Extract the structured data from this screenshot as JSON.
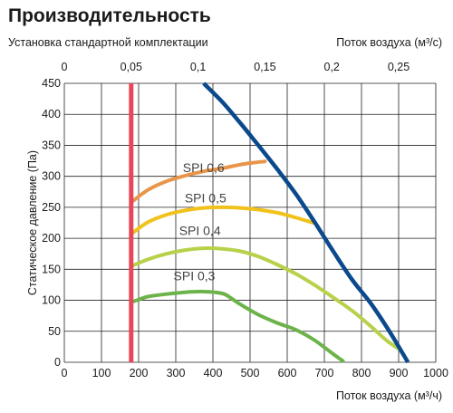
{
  "title": "Производительность",
  "subtitle": "Установка стандартной комплектации",
  "top_axis_label": "Поток воздуха (м³/с)",
  "bottom_axis_label": "Поток воздуха (м³/ч)",
  "chart_data": {
    "type": "line",
    "ylabel": "Статическое давление (Па)",
    "xlim": [
      0,
      1000
    ],
    "ylim": [
      0,
      450
    ],
    "x_ticks": [
      0,
      100,
      200,
      300,
      400,
      500,
      600,
      700,
      800,
      900,
      1000
    ],
    "y_ticks": [
      0,
      50,
      100,
      150,
      200,
      250,
      300,
      350,
      400,
      450
    ],
    "top_axis": {
      "unit": "m3/s",
      "ticks": [
        0,
        0.05,
        0.1,
        0.15,
        0.2,
        0.25
      ],
      "tick_labels": [
        "0",
        "0,05",
        "0,1",
        "0,15",
        "0,2",
        "0,25"
      ]
    },
    "grid": true,
    "min_flow_x": 180,
    "colors": {
      "min_flow": "#e8475a",
      "max_curve": "#0a4a8c",
      "SPI 0,6": "#e8954a",
      "SPI 0,5": "#f0c21a",
      "SPI 0,4": "#b7d14a",
      "SPI 0,3": "#6cb34a",
      "grid": "#222222"
    },
    "series": [
      {
        "name": "SPI 0,6",
        "label_at": [
          375,
          307
        ],
        "x": [
          180,
          225,
          275,
          325,
          375,
          425,
          475,
          510,
          540
        ],
        "y": [
          258,
          278,
          292,
          301,
          308,
          313,
          319,
          322,
          324
        ]
      },
      {
        "name": "SPI 0,5",
        "label_at": [
          380,
          258
        ],
        "x": [
          180,
          225,
          275,
          325,
          375,
          425,
          475,
          525,
          575,
          625,
          670
        ],
        "y": [
          207,
          226,
          238,
          245,
          249,
          250,
          249,
          246,
          241,
          233,
          225
        ]
      },
      {
        "name": "SPI 0,4",
        "label_at": [
          365,
          205
        ],
        "x": [
          180,
          225,
          275,
          325,
          375,
          425,
          475,
          525,
          575,
          625,
          675,
          725,
          775,
          825,
          870,
          905
        ],
        "y": [
          155,
          166,
          175,
          181,
          184,
          183,
          179,
          170,
          157,
          142,
          124,
          104,
          83,
          58,
          34,
          20
        ]
      },
      {
        "name": "SPI 0,3",
        "label_at": [
          350,
          132
        ],
        "x": [
          180,
          200,
          225,
          275,
          325,
          375,
          425,
          450,
          475,
          525,
          575,
          625,
          675,
          720,
          750
        ],
        "y": [
          97,
          101,
          106,
          110,
          113,
          114,
          111,
          103,
          93,
          76,
          63,
          52,
          35,
          15,
          2
        ]
      }
    ],
    "max_curve": {
      "x": [
        375,
        425,
        475,
        525,
        575,
        625,
        675,
        725,
        775,
        825,
        875,
        925
      ],
      "y": [
        450,
        420,
        385,
        348,
        310,
        270,
        225,
        178,
        133,
        95,
        50,
        0
      ]
    }
  }
}
